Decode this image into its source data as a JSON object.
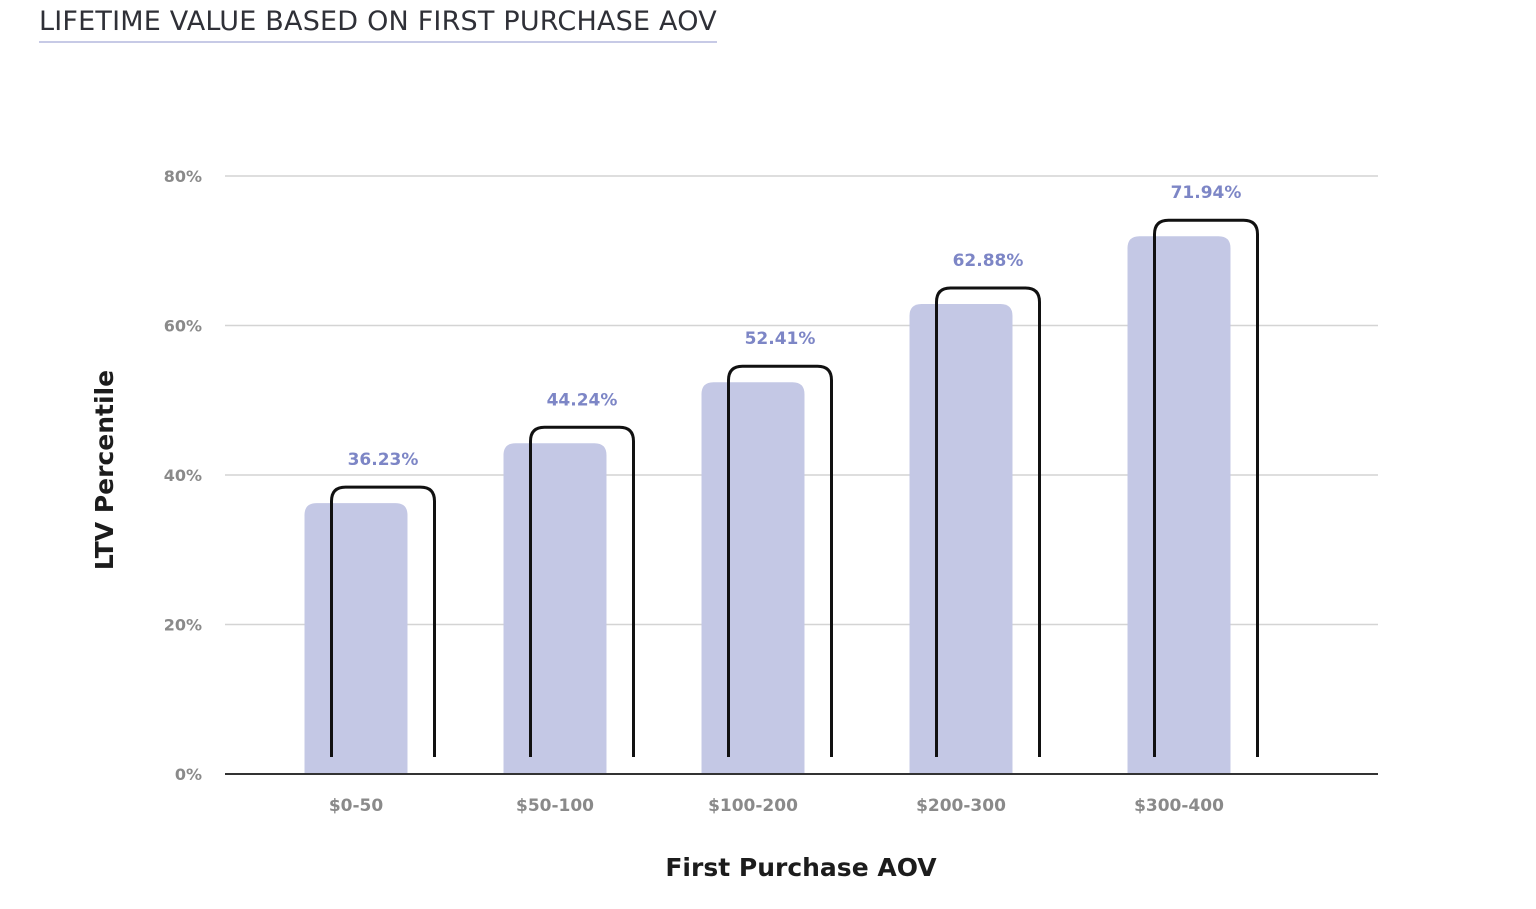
{
  "page": {
    "title": "LIFETIME VALUE BASED ON FIRST PURCHASE AOV"
  },
  "chart_data": {
    "type": "bar",
    "title": "LIFETIME VALUE BASED ON FIRST PURCHASE AOV",
    "xlabel": "First Purchase AOV",
    "ylabel": "LTV Percentile",
    "categories": [
      "$0-50",
      "$50-100",
      "$100-200",
      "$200-300",
      "$300-400"
    ],
    "values": [
      36.23,
      44.24,
      52.41,
      62.88,
      71.94
    ],
    "value_labels": [
      "36.23%",
      "44.24%",
      "52.41%",
      "62.88%",
      "71.94%"
    ],
    "ylim": [
      0,
      80
    ],
    "yticks": [
      0,
      20,
      40,
      60,
      80
    ],
    "ytick_labels": [
      "0%",
      "20%",
      "40%",
      "60%",
      "80%"
    ],
    "grid": true,
    "legend": "none",
    "colors": {
      "bar": "#c4c8e5",
      "value_label": "#7d86c6",
      "bracket": "#111111",
      "grid": "#d4d4d4",
      "baseline": "#333333",
      "title_underline": "#c7cae6"
    }
  }
}
